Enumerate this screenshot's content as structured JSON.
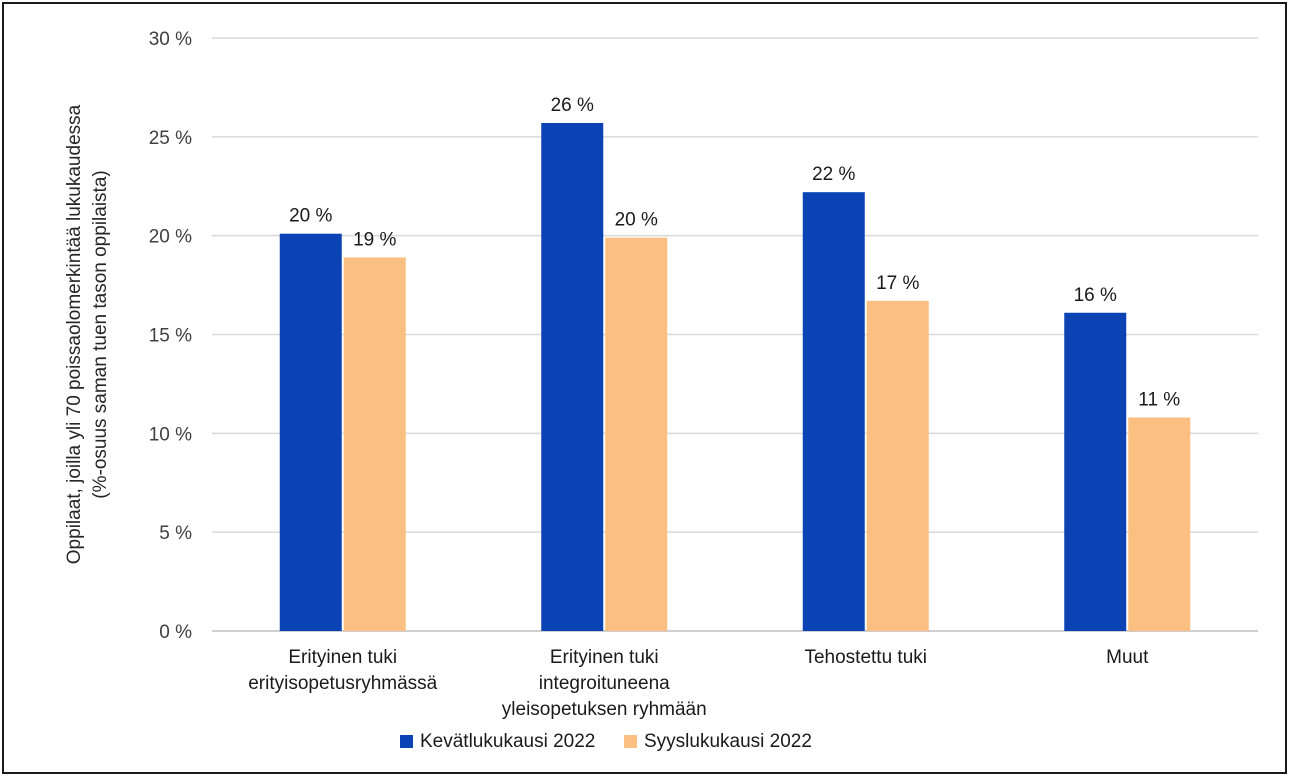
{
  "chart_data": {
    "type": "bar",
    "title": "",
    "ylabel_lines": [
      "Oppilaat, joilla yli 70 poissaolomerkintää lukukaudessa",
      "(%-osuus saman tuen tason oppilaista)"
    ],
    "xlabel": "",
    "categories": [
      [
        "Erityinen tuki",
        "erityisopetusryhmässä"
      ],
      [
        "Erityinen tuki",
        "integroituneena",
        "yleisopetuksen ryhmään"
      ],
      [
        "Tehostettu tuki"
      ],
      [
        "Muut"
      ]
    ],
    "series": [
      {
        "name": "Kevätlukukausi 2022",
        "color": "#0b43b5",
        "values": [
          20.1,
          25.7,
          22.2,
          16.1
        ],
        "labels": [
          "20 %",
          "26 %",
          "22 %",
          "16 %"
        ]
      },
      {
        "name": "Syyslukukausi 2022",
        "color": "#fbbf82",
        "values": [
          18.9,
          19.9,
          16.7,
          10.8
        ],
        "labels": [
          "19 %",
          "20 %",
          "17 %",
          "11 %"
        ]
      }
    ],
    "ylim": [
      0,
      30
    ],
    "yticks": [
      0,
      5,
      10,
      15,
      20,
      25,
      30
    ],
    "ytick_labels": [
      "0 %",
      "5 %",
      "10 %",
      "15 %",
      "20 %",
      "25 %",
      "30 %"
    ],
    "grid": true,
    "gridline_color": "#d9d9d9",
    "legend": "bottom-center"
  }
}
